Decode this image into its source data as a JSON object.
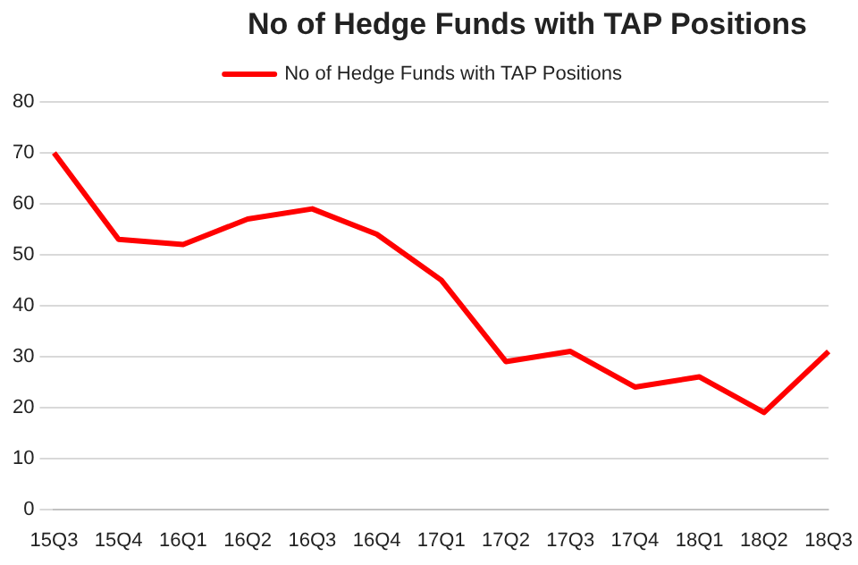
{
  "chart_data": {
    "type": "line",
    "title": "No of Hedge Funds with TAP Positions",
    "categories": [
      "15Q3",
      "15Q4",
      "16Q1",
      "16Q2",
      "16Q3",
      "16Q4",
      "17Q1",
      "17Q2",
      "17Q3",
      "17Q4",
      "18Q1",
      "18Q2",
      "18Q3"
    ],
    "series": [
      {
        "name": "No of Hedge Funds with TAP Positions",
        "color": "#ff0000",
        "values": [
          70,
          53,
          52,
          57,
          59,
          54,
          45,
          29,
          31,
          24,
          26,
          19,
          31
        ]
      }
    ],
    "ylim": [
      0,
      80
    ],
    "yticks": [
      0,
      10,
      20,
      30,
      40,
      50,
      60,
      70,
      80
    ],
    "grid": "y",
    "legend": "top",
    "marker": "none",
    "line_style": "solid"
  }
}
